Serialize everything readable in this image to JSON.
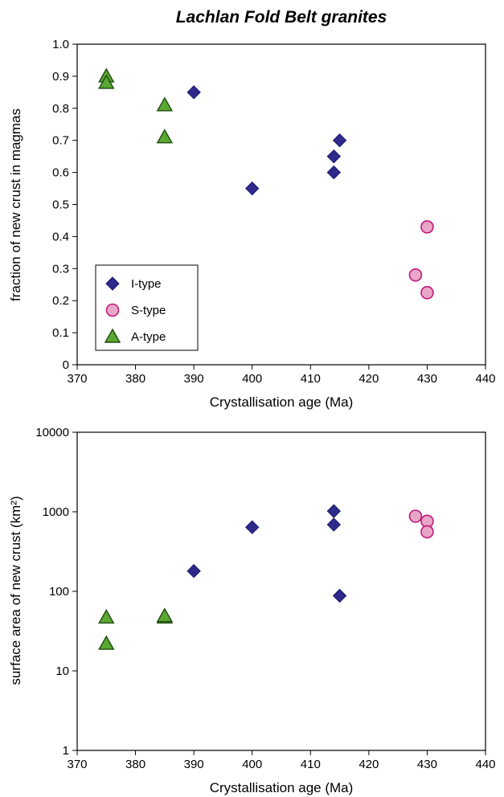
{
  "figure_title": "Lachlan Fold Belt granites",
  "colors": {
    "i_type_fill": "#2e2a8c",
    "i_type_stroke": "#1b186a",
    "s_type_fill": "#e8a6c8",
    "s_type_stroke": "#c2187a",
    "a_type_fill": "#5aa832",
    "a_type_stroke": "#1e4a10"
  },
  "chart_data": [
    {
      "type": "scatter",
      "title": "Lachlan Fold Belt granites",
      "xlabel": "Crystallisation age (Ma)",
      "ylabel": "fraction of new crust in magmas",
      "xlim": [
        370,
        440
      ],
      "ylim": [
        0,
        1.0
      ],
      "x_ticks": [
        "370",
        "380",
        "390",
        "400",
        "410",
        "420",
        "430",
        "440"
      ],
      "y_ticks": [
        "0",
        "0.1",
        "0.2",
        "0.3",
        "0.4",
        "0.5",
        "0.6",
        "0.7",
        "0.8",
        "0.9",
        "1.0"
      ],
      "grid": false,
      "legend_position": "lower-left",
      "series": [
        {
          "name": "I-type",
          "marker": "diamond",
          "color": "#2e2a8c",
          "points": [
            [
              390,
              0.85
            ],
            [
              400,
              0.55
            ],
            [
              414,
              0.65
            ],
            [
              414,
              0.6
            ],
            [
              415,
              0.7
            ]
          ]
        },
        {
          "name": "S-type",
          "marker": "circle",
          "color": "#e8a6c8",
          "points": [
            [
              428,
              0.28
            ],
            [
              430,
              0.43
            ],
            [
              430,
              0.225
            ]
          ]
        },
        {
          "name": "A-type",
          "marker": "triangle",
          "color": "#5aa832",
          "points": [
            [
              375,
              0.9
            ],
            [
              375,
              0.88
            ],
            [
              385,
              0.81
            ],
            [
              385,
              0.71
            ]
          ]
        }
      ]
    },
    {
      "type": "scatter",
      "xlabel": "Crystallisation age (Ma)",
      "ylabel": "surface area of new crust (km²)",
      "xlim": [
        370,
        440
      ],
      "ylim": [
        1,
        10000
      ],
      "y_scale": "log",
      "x_ticks": [
        "370",
        "380",
        "390",
        "400",
        "410",
        "420",
        "430",
        "440"
      ],
      "y_ticks": [
        "1",
        "10",
        "100",
        "1000",
        "10000"
      ],
      "grid": false,
      "series": [
        {
          "name": "I-type",
          "marker": "diamond",
          "color": "#2e2a8c",
          "points": [
            [
              390,
              180
            ],
            [
              400,
              640
            ],
            [
              414,
              1020
            ],
            [
              414,
              690
            ],
            [
              415,
              88
            ]
          ]
        },
        {
          "name": "S-type",
          "marker": "circle",
          "color": "#e8a6c8",
          "points": [
            [
              428,
              880
            ],
            [
              430,
              760
            ],
            [
              430,
              560
            ]
          ]
        },
        {
          "name": "A-type",
          "marker": "triangle",
          "color": "#5aa832",
          "points": [
            [
              375,
              47
            ],
            [
              375,
              22
            ],
            [
              385,
              47
            ],
            [
              385,
              49
            ]
          ]
        }
      ]
    }
  ]
}
